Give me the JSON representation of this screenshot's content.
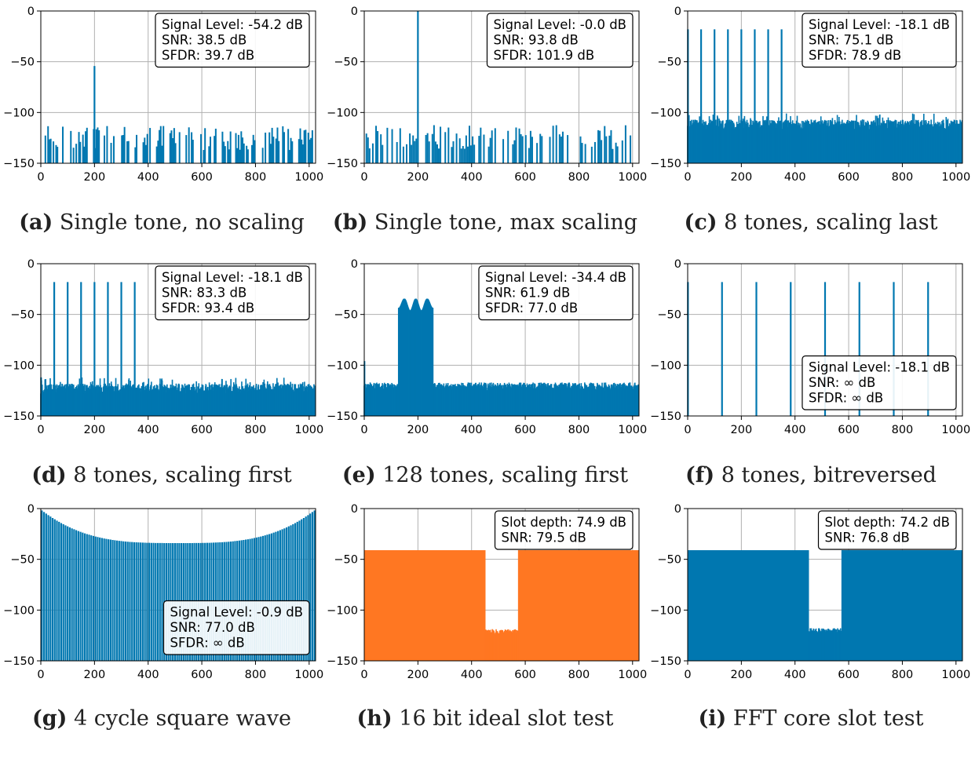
{
  "colors": {
    "blue": "#0077b0",
    "orange": "#ff7722",
    "grid": "#b0b0b0"
  },
  "chart_data": [
    {
      "id": "a",
      "type": "bar",
      "label": "(a)",
      "caption": "Single tone, no scaling",
      "xlim": [
        0,
        1024
      ],
      "ylim": [
        -150,
        0
      ],
      "xticks": [
        "0",
        "200",
        "400",
        "600",
        "800",
        "1000"
      ],
      "yticks": [
        "0",
        "−50",
        "−100",
        "−150"
      ],
      "info_position": "top-right",
      "info": [
        "Signal Level: -54.2 dB",
        "SNR: 38.5 dB",
        "SFDR: 39.7 dB"
      ],
      "series": [
        {
          "kind": "comb",
          "floor": -125,
          "spacing": 5,
          "peaks": [
            [
              200,
              -54.2
            ]
          ]
        }
      ]
    },
    {
      "id": "b",
      "type": "bar",
      "label": "(b)",
      "caption": "Single tone, max scaling",
      "xlim": [
        0,
        1024
      ],
      "ylim": [
        -150,
        0
      ],
      "xticks": [
        "0",
        "200",
        "400",
        "600",
        "800",
        "1000"
      ],
      "yticks": [
        "0",
        "−50",
        "−100",
        "−150"
      ],
      "info_position": "top-right",
      "info": [
        "Signal Level: -0.0 dB",
        "SNR: 93.8 dB",
        "SFDR: 101.9 dB"
      ],
      "series": [
        {
          "kind": "comb",
          "floor": -124,
          "spacing": 6,
          "peaks": [
            [
              200,
              0
            ]
          ]
        }
      ]
    },
    {
      "id": "c",
      "type": "bar",
      "label": "(c)",
      "caption": "8 tones, scaling last",
      "xlim": [
        0,
        1024
      ],
      "ylim": [
        -150,
        0
      ],
      "xticks": [
        "0",
        "200",
        "400",
        "600",
        "800",
        "1000"
      ],
      "yticks": [
        "0",
        "−50",
        "−100",
        "−150"
      ],
      "info_position": "top-right",
      "info": [
        "Signal Level: -18.1 dB",
        "SNR: 75.1 dB",
        "SFDR: 78.9 dB"
      ],
      "series": [
        {
          "kind": "dense",
          "floor": -113,
          "peaks": [
            [
              1,
              -18.1
            ],
            [
              50,
              -18.1
            ],
            [
              100,
              -18.1
            ],
            [
              150,
              -18.1
            ],
            [
              200,
              -18.1
            ],
            [
              250,
              -18.1
            ],
            [
              300,
              -18.1
            ],
            [
              350,
              -18.1
            ]
          ]
        }
      ]
    },
    {
      "id": "d",
      "type": "bar",
      "label": "(d)",
      "caption": "8 tones, scaling first",
      "xlim": [
        0,
        1024
      ],
      "ylim": [
        -150,
        0
      ],
      "xticks": [
        "0",
        "200",
        "400",
        "600",
        "800",
        "1000"
      ],
      "yticks": [
        "0",
        "−50",
        "−100",
        "−150"
      ],
      "info_position": "top-right",
      "info": [
        "Signal Level: -18.1 dB",
        "SNR: 83.3 dB",
        "SFDR: 93.4 dB"
      ],
      "series": [
        {
          "kind": "dense",
          "floor": -124,
          "peaks": [
            [
              1,
              -112
            ],
            [
              50,
              -18.1
            ],
            [
              100,
              -18.1
            ],
            [
              150,
              -18.1
            ],
            [
              200,
              -18.1
            ],
            [
              250,
              -18.1
            ],
            [
              300,
              -18.1
            ],
            [
              350,
              -18.1
            ]
          ]
        }
      ]
    },
    {
      "id": "e",
      "type": "bar",
      "label": "(e)",
      "caption": "128 tones, scaling first",
      "xlim": [
        0,
        1024
      ],
      "ylim": [
        -150,
        0
      ],
      "xticks": [
        "0",
        "200",
        "400",
        "600",
        "800",
        "1000"
      ],
      "yticks": [
        "0",
        "−50",
        "−100",
        "−150"
      ],
      "info_position": "top-right",
      "info": [
        "Signal Level: -34.4 dB",
        "SNR: 61.9 dB",
        "SFDR: 77.0 dB"
      ],
      "series": [
        {
          "kind": "band",
          "floor": -121,
          "band": [
            128,
            256
          ],
          "band_top": -34.4,
          "peaks": [
            [
              1,
              -96
            ]
          ]
        }
      ]
    },
    {
      "id": "f",
      "type": "bar",
      "label": "(f)",
      "caption": "8 tones, bitreversed",
      "xlim": [
        0,
        1024
      ],
      "ylim": [
        -150,
        0
      ],
      "xticks": [
        "0",
        "200",
        "400",
        "600",
        "800",
        "1000"
      ],
      "yticks": [
        "0",
        "−50",
        "−100",
        "−150"
      ],
      "info_position": "bottom-right",
      "info": [
        "Signal Level: -18.1 dB",
        "SNR: ∞ dB",
        "SFDR: ∞ dB"
      ],
      "series": [
        {
          "kind": "sparse",
          "peaks": [
            [
              1,
              -18.1
            ],
            [
              128,
              -18.1
            ],
            [
              256,
              -18.1
            ],
            [
              384,
              -18.1
            ],
            [
              512,
              -18.1
            ],
            [
              640,
              -18.1
            ],
            [
              768,
              -18.1
            ],
            [
              896,
              -18.1
            ]
          ]
        }
      ]
    },
    {
      "id": "g",
      "type": "bar",
      "label": "(g)",
      "caption": "4 cycle square wave",
      "xlim": [
        0,
        1024
      ],
      "ylim": [
        -150,
        0
      ],
      "xticks": [
        "0",
        "200",
        "400",
        "600",
        "800",
        "1000"
      ],
      "yticks": [
        "0",
        "−50",
        "−100",
        "−150"
      ],
      "info_position": "bottom-right",
      "info": [
        "Signal Level: -0.9 dB",
        "SNR: 77.0 dB",
        "SFDR: ∞ dB"
      ],
      "series": [
        {
          "kind": "square",
          "spacing": 8,
          "edge_level": -1,
          "center_level": -34
        }
      ]
    },
    {
      "id": "h",
      "type": "area",
      "label": "(h)",
      "caption": "16 bit ideal slot test",
      "color": "orange",
      "xlim": [
        0,
        1024
      ],
      "ylim": [
        -150,
        0
      ],
      "xticks": [
        "0",
        "200",
        "400",
        "600",
        "800",
        "1000"
      ],
      "yticks": [
        "0",
        "−50",
        "−100",
        "−150"
      ],
      "info_position": "top-right",
      "info": [
        "Slot depth: 74.9 dB",
        "SNR: 79.5 dB"
      ],
      "series": [
        {
          "kind": "slot",
          "level": -41,
          "slot": [
            452,
            573
          ],
          "slot_level": -123
        }
      ]
    },
    {
      "id": "i",
      "type": "area",
      "label": "(i)",
      "caption": "FFT core slot test",
      "xlim": [
        0,
        1024
      ],
      "ylim": [
        -150,
        0
      ],
      "xticks": [
        "0",
        "200",
        "400",
        "600",
        "800",
        "1000"
      ],
      "yticks": [
        "0",
        "−50",
        "−100",
        "−150"
      ],
      "info_position": "top-right",
      "info": [
        "Slot depth: 74.2 dB",
        "SNR: 76.8 dB"
      ],
      "series": [
        {
          "kind": "slot",
          "level": -41,
          "slot": [
            452,
            573
          ],
          "slot_level": -122
        }
      ]
    }
  ]
}
